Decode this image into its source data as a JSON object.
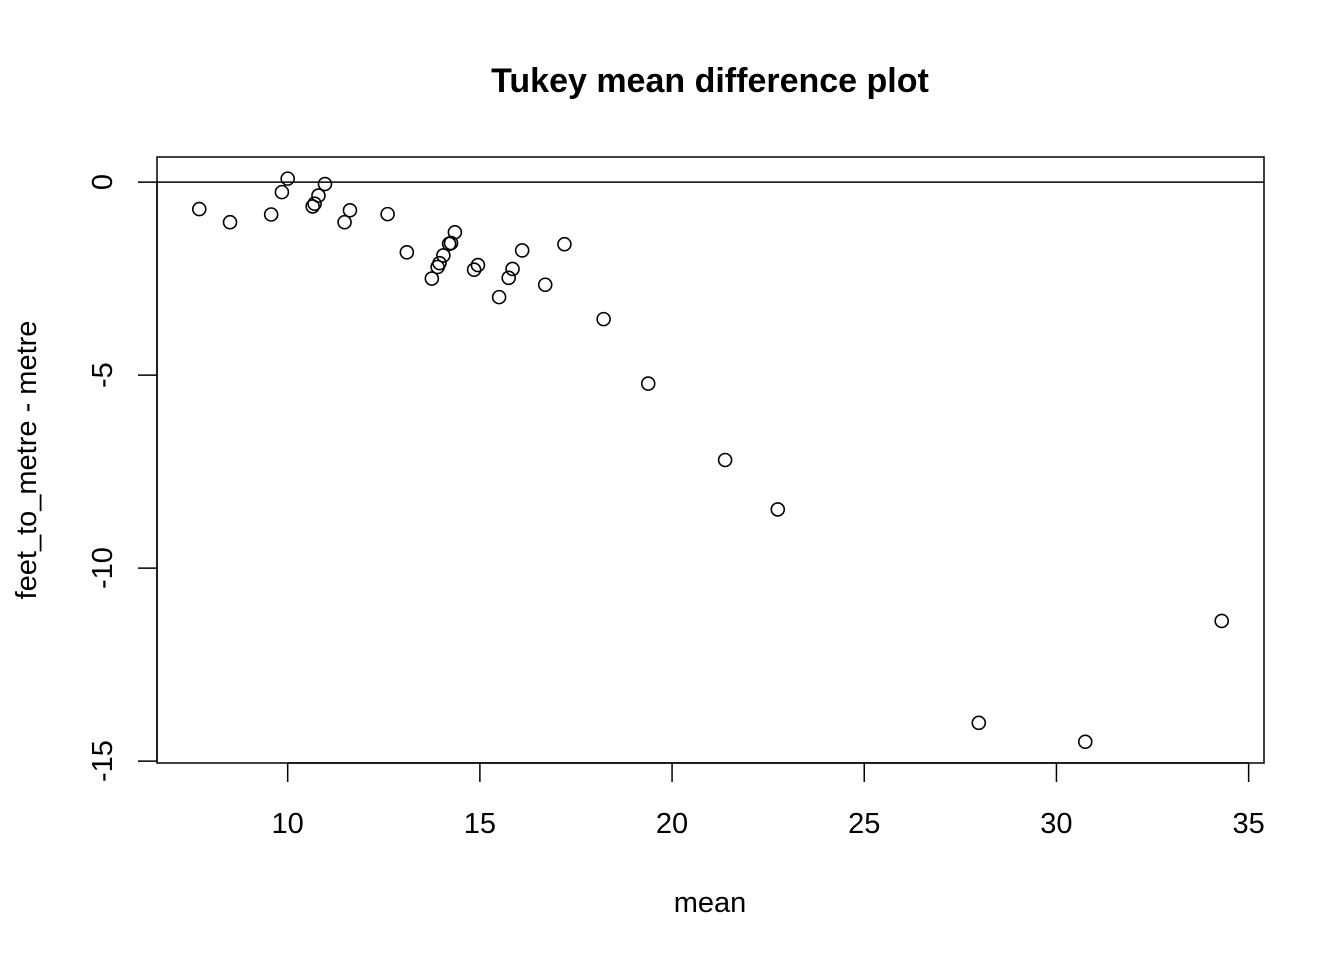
{
  "chart_data": {
    "type": "scatter",
    "title": "Tukey mean difference plot",
    "xlabel": "mean",
    "ylabel": "feet_to_metre - metre",
    "xlim": [
      6.6,
      35.4
    ],
    "ylim": [
      -15.05,
      0.65
    ],
    "x_ticks": [
      10,
      15,
      20,
      25,
      30,
      35
    ],
    "x_tick_labels": [
      "10",
      "15",
      "20",
      "25",
      "30",
      "35"
    ],
    "y_ticks": [
      0,
      -5,
      -10,
      -15
    ],
    "y_tick_labels": [
      "0",
      "-5",
      "-10",
      "-15"
    ],
    "reference_line_y": 0,
    "grid": false,
    "marker": "open-circle",
    "points": [
      {
        "x": 7.7,
        "y": -0.7
      },
      {
        "x": 8.5,
        "y": -1.04
      },
      {
        "x": 9.57,
        "y": -0.84
      },
      {
        "x": 9.85,
        "y": -0.26
      },
      {
        "x": 10.0,
        "y": 0.09
      },
      {
        "x": 10.65,
        "y": -0.63
      },
      {
        "x": 10.7,
        "y": -0.56
      },
      {
        "x": 10.8,
        "y": -0.35
      },
      {
        "x": 10.97,
        "y": -0.05
      },
      {
        "x": 11.48,
        "y": -1.04
      },
      {
        "x": 11.62,
        "y": -0.73
      },
      {
        "x": 12.6,
        "y": -0.83
      },
      {
        "x": 13.1,
        "y": -1.82
      },
      {
        "x": 13.75,
        "y": -2.5
      },
      {
        "x": 13.9,
        "y": -2.2
      },
      {
        "x": 13.95,
        "y": -2.1
      },
      {
        "x": 14.05,
        "y": -1.9
      },
      {
        "x": 14.2,
        "y": -1.6
      },
      {
        "x": 14.25,
        "y": -1.58
      },
      {
        "x": 14.35,
        "y": -1.3
      },
      {
        "x": 14.85,
        "y": -2.27
      },
      {
        "x": 14.95,
        "y": -2.15
      },
      {
        "x": 15.5,
        "y": -2.98
      },
      {
        "x": 15.75,
        "y": -2.48
      },
      {
        "x": 15.85,
        "y": -2.25
      },
      {
        "x": 16.1,
        "y": -1.77
      },
      {
        "x": 16.7,
        "y": -2.66
      },
      {
        "x": 17.2,
        "y": -1.61
      },
      {
        "x": 18.22,
        "y": -3.55
      },
      {
        "x": 19.38,
        "y": -5.22
      },
      {
        "x": 21.38,
        "y": -7.2
      },
      {
        "x": 22.75,
        "y": -8.48
      },
      {
        "x": 27.98,
        "y": -14.01
      },
      {
        "x": 30.75,
        "y": -14.5
      },
      {
        "x": 34.3,
        "y": -11.37
      }
    ]
  }
}
